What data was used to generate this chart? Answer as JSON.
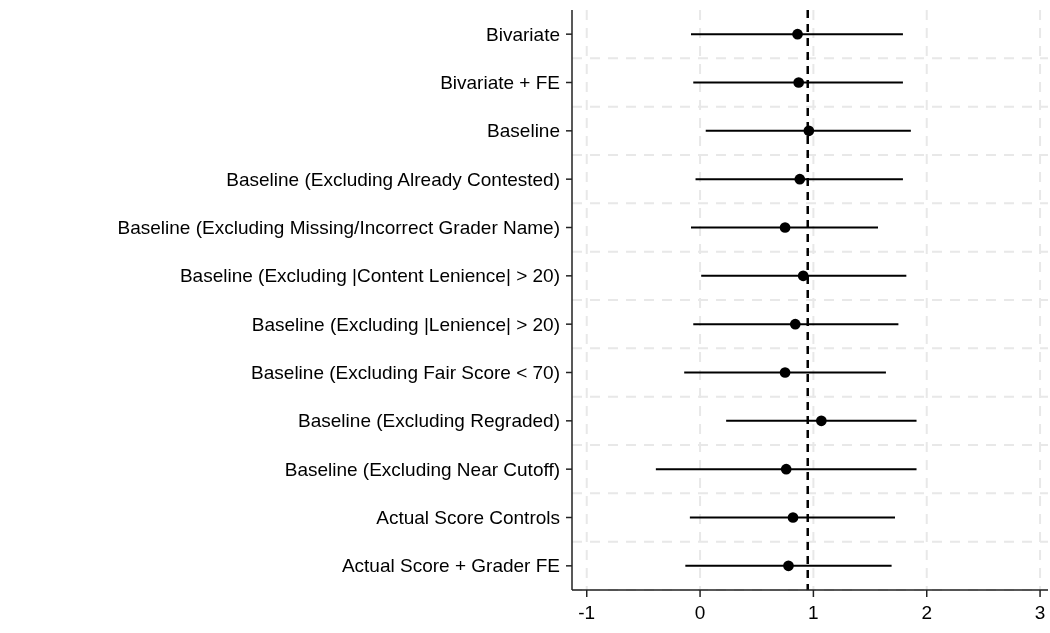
{
  "chart_data": {
    "type": "scatter",
    "orientation": "horizontal",
    "categories": [
      "Bivariate",
      "Bivariate + FE",
      "Baseline",
      "Baseline (Excluding Already Contested)",
      "Baseline (Excluding Missing/Incorrect Grader Name)",
      "Baseline (Excluding |Content Lenience| > 20)",
      "Baseline (Excluding |Lenience| > 20)",
      "Baseline (Excluding Fair Score < 70)",
      "Baseline (Excluding Regraded)",
      "Baseline (Excluding Near Cutoff)",
      "Actual Score Controls",
      "Actual Score + Grader FE"
    ],
    "values": [
      0.86,
      0.87,
      0.96,
      0.88,
      0.75,
      0.91,
      0.84,
      0.75,
      1.07,
      0.76,
      0.82,
      0.78
    ],
    "errors": [
      [
        -0.08,
        1.79
      ],
      [
        -0.06,
        1.79
      ],
      [
        0.05,
        1.86
      ],
      [
        -0.04,
        1.79
      ],
      [
        -0.08,
        1.57
      ],
      [
        0.01,
        1.82
      ],
      [
        -0.06,
        1.75
      ],
      [
        -0.14,
        1.64
      ],
      [
        0.23,
        1.91
      ],
      [
        -0.39,
        1.91
      ],
      [
        -0.09,
        1.72
      ],
      [
        -0.13,
        1.69
      ]
    ],
    "color": "#000000",
    "marker": "circle",
    "xlim": [
      -1.13,
      3.07
    ],
    "xticks": [
      -1,
      0,
      1,
      2,
      3
    ],
    "grid": true,
    "ref_lines": [
      {
        "axis": "x",
        "value": 0.95,
        "color": "#000000",
        "line_style": "dashed"
      }
    ]
  }
}
